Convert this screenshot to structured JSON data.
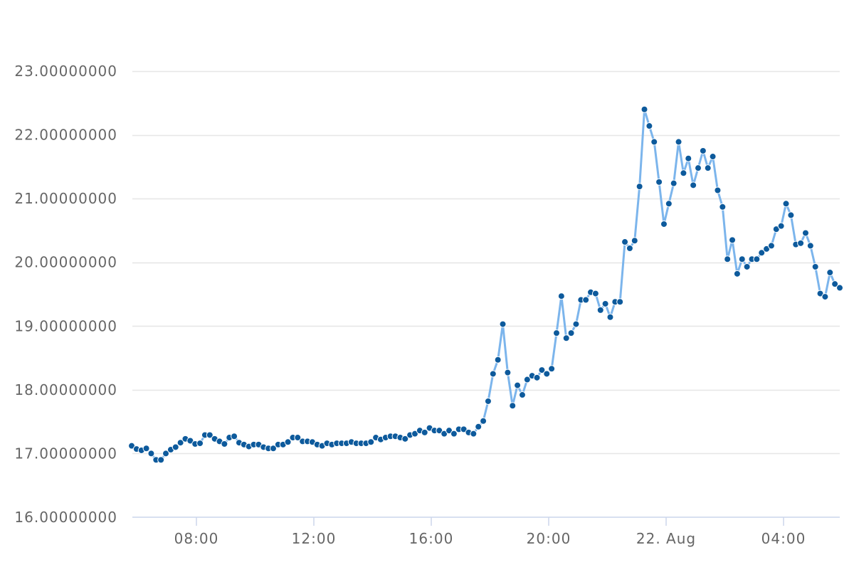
{
  "chart_data": {
    "type": "line",
    "title": "",
    "xlabel": "",
    "ylabel": "",
    "ylim": [
      16,
      23
    ],
    "y_ticks": [
      "16.00000000",
      "17.00000000",
      "18.00000000",
      "19.00000000",
      "20.00000000",
      "21.00000000",
      "22.00000000",
      "23.00000000"
    ],
    "y_tick_values": [
      16,
      17,
      18,
      19,
      20,
      21,
      22,
      23
    ],
    "x_ticks": [
      "08:00",
      "12:00",
      "16:00",
      "20:00",
      "22. Aug",
      "04:00"
    ],
    "grid": true,
    "legend": "none",
    "line_color": "#7cb5ec",
    "marker_color": "#0d5a9c",
    "series": [
      {
        "values": [
          17.12,
          17.07,
          17.05,
          17.08,
          17.0,
          16.9,
          16.9,
          17.0,
          17.06,
          17.1,
          17.17,
          17.23,
          17.2,
          17.15,
          17.16,
          17.29,
          17.29,
          17.23,
          17.19,
          17.15,
          17.25,
          17.27,
          17.17,
          17.14,
          17.11,
          17.14,
          17.14,
          17.1,
          17.08,
          17.08,
          17.14,
          17.14,
          17.18,
          17.25,
          17.25,
          17.19,
          17.19,
          17.18,
          17.14,
          17.12,
          17.16,
          17.14,
          17.16,
          17.16,
          17.16,
          17.18,
          17.16,
          17.16,
          17.16,
          17.18,
          17.25,
          17.22,
          17.25,
          17.27,
          17.27,
          17.25,
          17.23,
          17.29,
          17.31,
          17.36,
          17.33,
          17.4,
          17.36,
          17.36,
          17.31,
          17.36,
          17.31,
          17.38,
          17.38,
          17.33,
          17.31,
          17.42,
          17.51,
          17.82,
          18.25,
          18.47,
          19.03,
          18.27,
          17.75,
          18.07,
          17.92,
          18.16,
          18.22,
          18.19,
          18.31,
          18.25,
          18.33,
          18.89,
          19.47,
          18.81,
          18.89,
          19.03,
          19.41,
          19.41,
          19.53,
          19.51,
          19.25,
          19.35,
          19.14,
          19.38,
          19.38,
          20.32,
          20.22,
          20.34,
          21.19,
          22.4,
          22.14,
          21.89,
          21.26,
          20.6,
          20.92,
          21.24,
          21.89,
          21.4,
          21.63,
          21.21,
          21.48,
          21.75,
          21.48,
          21.66,
          21.13,
          20.87,
          20.05,
          20.35,
          19.82,
          20.05,
          19.93,
          20.05,
          20.05,
          20.15,
          20.21,
          20.26,
          20.52,
          20.57,
          20.92,
          20.74,
          20.28,
          20.3,
          20.46,
          20.26,
          19.93,
          19.51,
          19.46,
          19.84,
          19.66,
          19.6
        ]
      }
    ]
  }
}
